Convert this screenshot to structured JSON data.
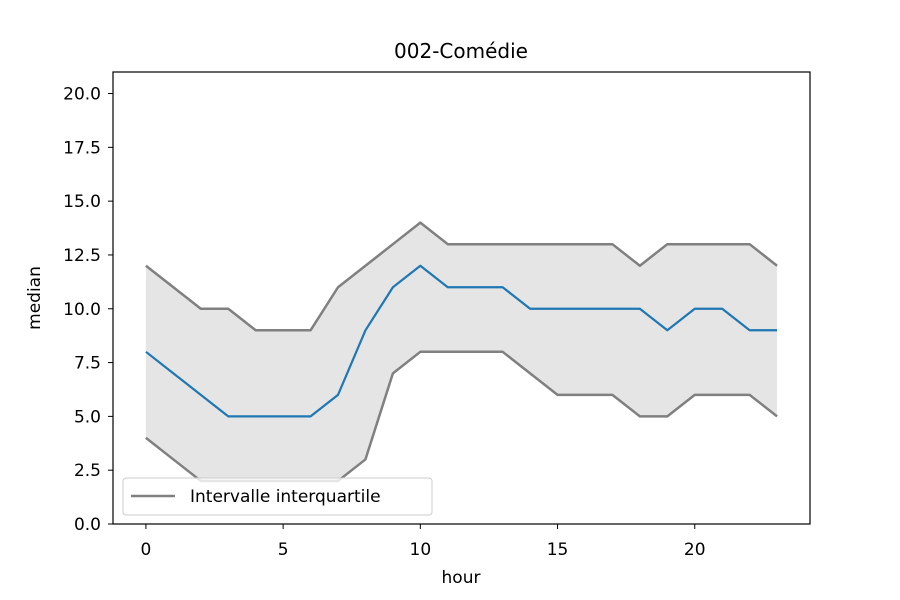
{
  "chart_data": {
    "type": "line",
    "title": "002-Comédie",
    "xlabel": "hour",
    "ylabel": "median",
    "xlim": [
      -1.2,
      24.2
    ],
    "ylim": [
      0,
      21
    ],
    "xticks": [
      0,
      5,
      10,
      15,
      20
    ],
    "xtick_labels": [
      "0",
      "5",
      "10",
      "15",
      "20"
    ],
    "yticks": [
      0,
      2.5,
      5,
      7.5,
      10,
      12.5,
      15,
      17.5,
      20
    ],
    "ytick_labels": [
      "0.0",
      "2.5",
      "5.0",
      "7.5",
      "10.0",
      "12.5",
      "15.0",
      "17.5",
      "20.0"
    ],
    "grid": false,
    "legend": {
      "placement": "lower-left",
      "entries": [
        "Intervalle interquartile"
      ]
    },
    "x": [
      0,
      1,
      2,
      3,
      4,
      5,
      6,
      7,
      8,
      9,
      10,
      11,
      12,
      13,
      14,
      15,
      16,
      17,
      18,
      19,
      20,
      21,
      22,
      23
    ],
    "series": [
      {
        "role": "median",
        "color": "#1f77b4",
        "values": [
          8,
          7,
          6,
          5,
          5,
          5,
          5,
          6,
          9,
          11,
          12,
          11,
          11,
          11,
          10,
          10,
          10,
          10,
          10,
          9,
          10,
          10,
          9,
          9
        ]
      },
      {
        "role": "upper-quartile",
        "color": "#808080",
        "values": [
          12,
          11,
          10,
          10,
          9,
          9,
          9,
          11,
          12,
          13,
          14,
          13,
          13,
          13,
          13,
          13,
          13,
          13,
          12,
          13,
          13,
          13,
          13,
          12
        ]
      },
      {
        "role": "lower-quartile",
        "color": "#808080",
        "values": [
          4,
          3,
          2,
          2,
          2,
          2,
          2,
          2,
          3,
          7,
          8,
          8,
          8,
          8,
          7,
          6,
          6,
          6,
          5,
          5,
          6,
          6,
          6,
          5
        ]
      }
    ],
    "band_fill_color": "#e5e5e5"
  }
}
